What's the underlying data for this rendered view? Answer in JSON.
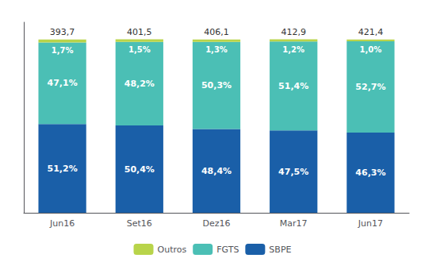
{
  "chart_data": {
    "type": "bar",
    "stacked": true,
    "categories": [
      "Jun16",
      "Set16",
      "Dez16",
      "Mar17",
      "Jun17"
    ],
    "series": [
      {
        "name": "SBPE",
        "color": "#1a5fa8",
        "values": [
          51.2,
          50.4,
          48.4,
          47.5,
          46.3
        ],
        "value_labels": [
          "51,2%",
          "50,4%",
          "48,4%",
          "47,5%",
          "46,3%"
        ]
      },
      {
        "name": "FGTS",
        "color": "#4bbfb5",
        "values": [
          47.1,
          48.2,
          50.3,
          51.4,
          52.7
        ],
        "value_labels": [
          "47,1%",
          "48,2%",
          "50,3%",
          "51,4%",
          "52,7%"
        ]
      },
      {
        "name": "Outros",
        "color": "#b8d44a",
        "values": [
          1.7,
          1.5,
          1.3,
          1.2,
          1.0
        ],
        "value_labels": [
          "1,7%",
          "1,5%",
          "1,3%",
          "1,2%",
          "1,0%"
        ]
      }
    ],
    "totals": [
      393.7,
      401.5,
      406.1,
      412.9,
      421.4
    ],
    "total_labels": [
      "393,7",
      "401,5",
      "406,1",
      "412,9",
      "421,4"
    ],
    "data_labels": true,
    "ylim": [
      0,
      110
    ],
    "tick_labels": "x",
    "grid": false,
    "legend": "bottom"
  }
}
